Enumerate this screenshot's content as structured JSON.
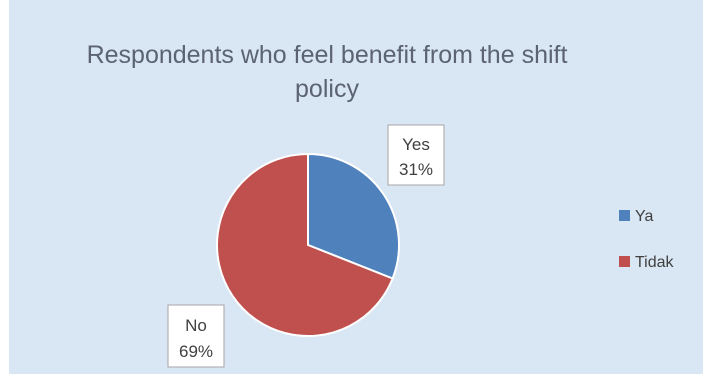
{
  "chart_data": {
    "type": "pie",
    "title_lines": [
      "Respondents who feel benefit from the shift",
      "policy"
    ],
    "categories": [
      "Ya",
      "Tidak"
    ],
    "values": [
      31,
      69
    ],
    "colors": [
      "#4f81bd",
      "#c0504d"
    ],
    "data_labels": [
      {
        "name": "Yes",
        "value": "31%"
      },
      {
        "name": "No",
        "value": "69%"
      }
    ],
    "legend": {
      "placement": "right",
      "entries": [
        "Ya",
        "Tidak"
      ]
    },
    "background_color": "#d9e6f3"
  }
}
